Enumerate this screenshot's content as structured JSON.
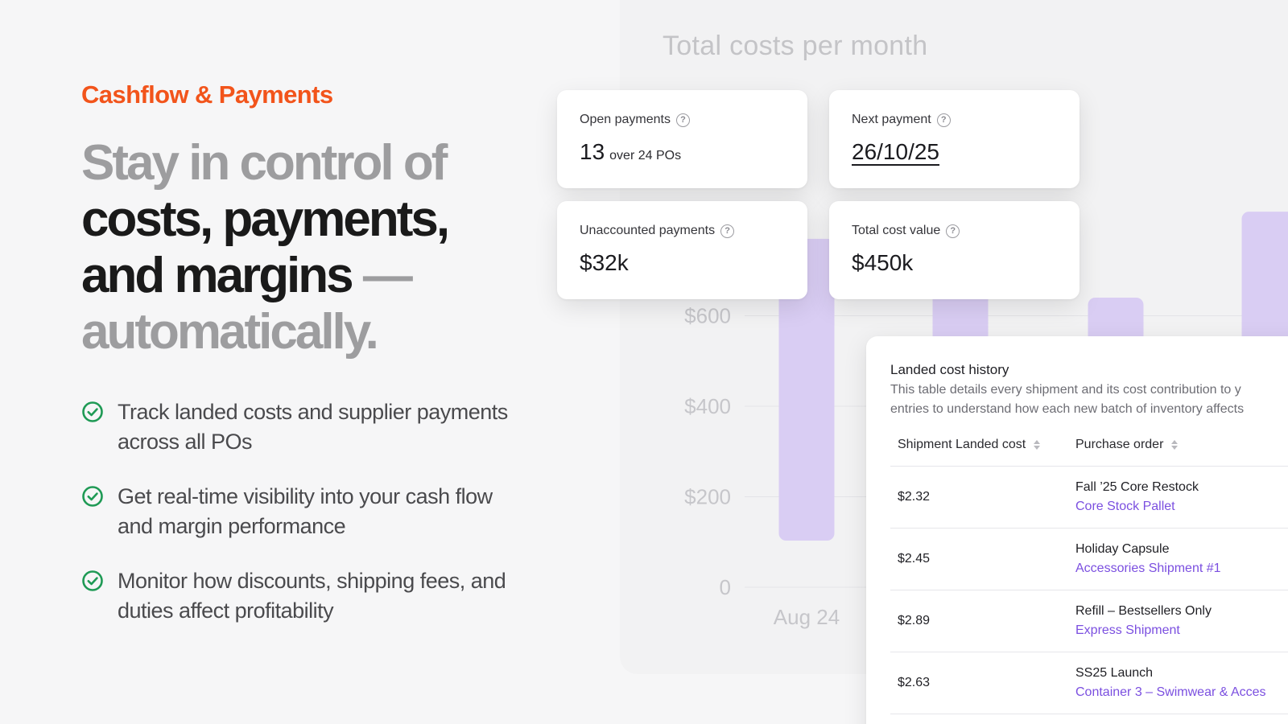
{
  "eyebrow": "Cashflow & Payments",
  "headline": {
    "line1": "Stay in control of",
    "line2": "costs, payments,",
    "line3_strong": "and margins",
    "line3_dash": " —",
    "line4": "automatically."
  },
  "features": [
    {
      "icon": "check-circle-icon",
      "text": "Track landed costs and supplier payments across all POs"
    },
    {
      "icon": "check-circle-icon",
      "text": "Get real-time visibility into your cash flow and margin performance"
    },
    {
      "icon": "check-circle-icon",
      "text": "Monitor how discounts, shipping fees, and duties affect profitability"
    }
  ],
  "cards": {
    "open_payments": {
      "label": "Open payments",
      "value": "13",
      "sub": "over 24 POs"
    },
    "next_payment": {
      "label": "Next payment",
      "value": "26/10/25"
    },
    "unaccounted_payments": {
      "label": "Unaccounted payments",
      "value": "$32k"
    },
    "total_cost_value": {
      "label": "Total cost value",
      "value": "$450k"
    }
  },
  "help_glyph": "?",
  "chart_data": {
    "type": "bar",
    "title": "Total costs per month",
    "categories": [
      "Aug 24",
      "",
      "",
      ""
    ],
    "values": [
      770,
      830,
      640,
      830
    ],
    "y_tick_labels": [
      "0",
      "$200",
      "$400",
      "$600"
    ],
    "ylim": [
      0,
      1200
    ],
    "grid": true,
    "color": "#d9cdf3"
  },
  "table": {
    "title": "Landed cost history",
    "description_line1": "This table details every shipment and its cost contribution to y",
    "description_line2": "entries to understand how each new batch of inventory affects",
    "columns": [
      "Shipment Landed cost",
      "Purchase order"
    ],
    "rows": [
      {
        "cost": "$2.32",
        "po": "Fall ’25 Core Restock",
        "shipment": "Core Stock Pallet"
      },
      {
        "cost": "$2.45",
        "po": "Holiday Capsule",
        "shipment": "Accessories Shipment #1"
      },
      {
        "cost": "$2.89",
        "po": "Refill – Bestsellers Only",
        "shipment": "Express Shipment"
      },
      {
        "cost": "$2.63",
        "po": "SS25 Launch",
        "shipment": "Container 3 – Swimwear & Acces"
      }
    ]
  }
}
